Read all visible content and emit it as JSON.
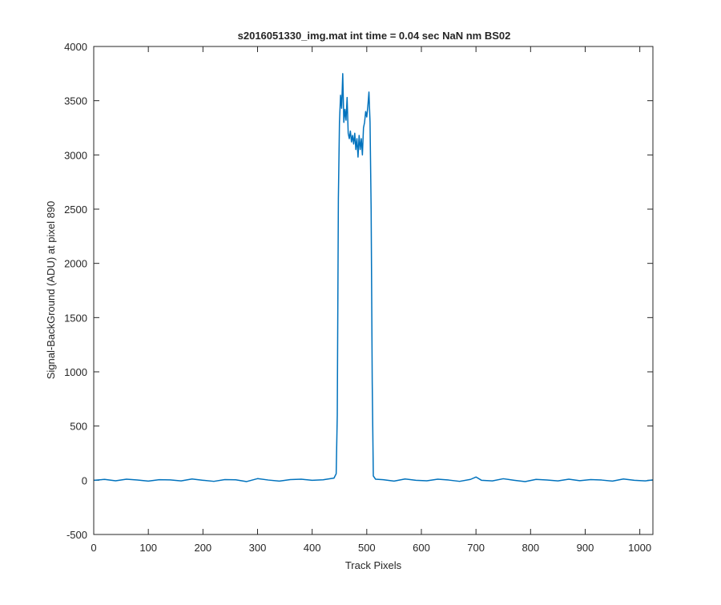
{
  "chart_data": {
    "type": "line",
    "title": "s2016051330_img.mat int time = 0.04 sec  NaN nm BS02",
    "xlabel": "Track Pixels",
    "ylabel": "Signal-BackGround (ADU) at pixel 890",
    "xlim": [
      0,
      1024
    ],
    "ylim": [
      -500,
      4000
    ],
    "xticks": [
      0,
      100,
      200,
      300,
      400,
      500,
      600,
      700,
      800,
      900,
      1000
    ],
    "yticks": [
      -500,
      0,
      500,
      1000,
      1500,
      2000,
      2500,
      3000,
      3500,
      4000
    ],
    "grid": false,
    "line_color": "#0072BD",
    "series": [
      {
        "x": [
          0,
          20,
          40,
          60,
          80,
          100,
          120,
          140,
          160,
          180,
          200,
          220,
          240,
          260,
          280,
          300,
          320,
          340,
          360,
          380,
          400,
          420,
          440,
          444,
          446,
          448,
          450,
          452,
          454,
          456,
          458,
          460,
          462,
          464,
          466,
          468,
          470,
          472,
          474,
          476,
          478,
          480,
          482,
          484,
          486,
          488,
          490,
          492,
          494,
          496,
          498,
          500,
          502,
          504,
          506,
          508,
          510,
          512,
          516,
          530,
          550,
          570,
          590,
          610,
          630,
          650,
          670,
          690,
          700,
          710,
          730,
          750,
          770,
          790,
          810,
          830,
          850,
          870,
          890,
          910,
          930,
          950,
          970,
          990,
          1010,
          1024
        ],
        "y": [
          0,
          8,
          -5,
          10,
          2,
          -8,
          5,
          3,
          -6,
          12,
          0,
          -10,
          6,
          4,
          -12,
          15,
          2,
          -8,
          6,
          10,
          0,
          4,
          20,
          60,
          600,
          2600,
          3300,
          3550,
          3430,
          3750,
          3300,
          3420,
          3320,
          3530,
          3200,
          3150,
          3220,
          3120,
          3180,
          3100,
          3200,
          3050,
          3150,
          2980,
          3180,
          3050,
          3150,
          3000,
          3250,
          3300,
          3400,
          3350,
          3450,
          3580,
          3300,
          2500,
          900,
          40,
          10,
          5,
          -8,
          12,
          0,
          -5,
          10,
          2,
          -10,
          8,
          30,
          0,
          -6,
          14,
          0,
          -12,
          8,
          2,
          -6,
          10,
          -4,
          6,
          2,
          -8,
          12,
          0,
          -6,
          3
        ]
      }
    ]
  }
}
